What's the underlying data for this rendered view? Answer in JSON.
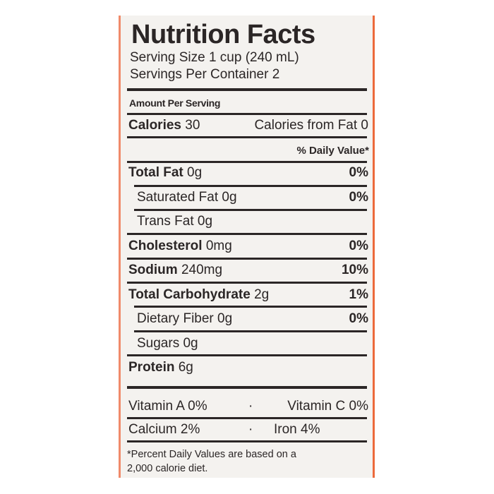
{
  "title": "Nutrition Facts",
  "serving_size": "Serving Size 1 cup (240 mL)",
  "servings_per_container": "Servings Per Container 2",
  "amount_per_serving": "Amount Per Serving",
  "calories": {
    "label": "Calories",
    "value": "30",
    "from_fat": "Calories from Fat 0"
  },
  "daily_value_header": "% Daily Value*",
  "nutrients": [
    {
      "label": "Total Fat",
      "amount": "0g",
      "dv": "0%"
    },
    {
      "label": "Saturated Fat",
      "amount": "0g",
      "dv": "0%"
    },
    {
      "label": "Trans Fat",
      "amount": "0g",
      "dv": ""
    },
    {
      "label": "Cholesterol",
      "amount": "0mg",
      "dv": "0%"
    },
    {
      "label": "Sodium",
      "amount": "240mg",
      "dv": "10%"
    },
    {
      "label": "Total Carbohydrate",
      "amount": "2g",
      "dv": "1%"
    },
    {
      "label": "Dietary Fiber",
      "amount": "0g",
      "dv": "0%"
    },
    {
      "label": "Sugars",
      "amount": "0g",
      "dv": ""
    },
    {
      "label": "Protein",
      "amount": "6g",
      "dv": ""
    }
  ],
  "vitamins": [
    {
      "left": "Vitamin A 0%",
      "right": "Vitamin C 0%"
    },
    {
      "left": "Calcium 2%",
      "right": "Iron 4%"
    }
  ],
  "footnote_line1": "*Percent Daily Values are based on a",
  "footnote_line2": "2,000 calorie diet.",
  "colors": {
    "background": "#f4f2ef",
    "text": "#2b2626",
    "edge_accent": "#ec6a3c"
  }
}
